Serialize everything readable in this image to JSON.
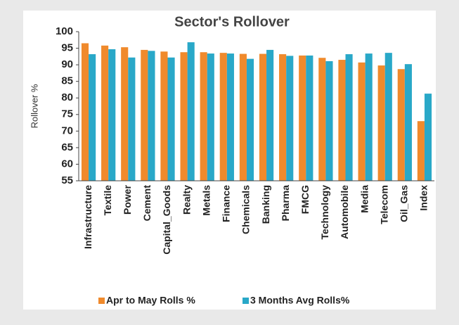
{
  "chart_data": {
    "type": "bar",
    "title": "Sector's Rollover",
    "y_label": "Rollover %",
    "categories": [
      "Infrastructure",
      "Textile",
      "Power",
      "Cement",
      "Capital_Goods",
      "Realty",
      "Metals",
      "Finance",
      "Chemicals",
      "Banking",
      "Pharma",
      "FMCG",
      "Technology",
      "Automobile",
      "Media",
      "Telecom",
      "Oil_Gas",
      "Index"
    ],
    "series": [
      {
        "name": "Apr to May Rolls %",
        "color": "#f08a2c",
        "values": [
          96.5,
          95.8,
          95.3,
          94.5,
          94.0,
          93.8,
          93.8,
          93.6,
          93.3,
          93.3,
          93.2,
          92.8,
          92.1,
          91.5,
          90.7,
          89.8,
          88.7,
          73.0
        ]
      },
      {
        "name": "3 Months Avg Rolls%",
        "color": "#29a8c8",
        "values": [
          93.2,
          94.7,
          92.2,
          94.2,
          92.2,
          96.8,
          93.4,
          93.4,
          91.8,
          94.5,
          92.7,
          92.8,
          91.1,
          93.2,
          93.4,
          93.6,
          90.2,
          81.3
        ]
      }
    ],
    "ylim": [
      55,
      100
    ],
    "yticks": [
      55,
      60,
      65,
      70,
      75,
      80,
      85,
      90,
      95,
      100
    ],
    "legend": "bottom"
  }
}
